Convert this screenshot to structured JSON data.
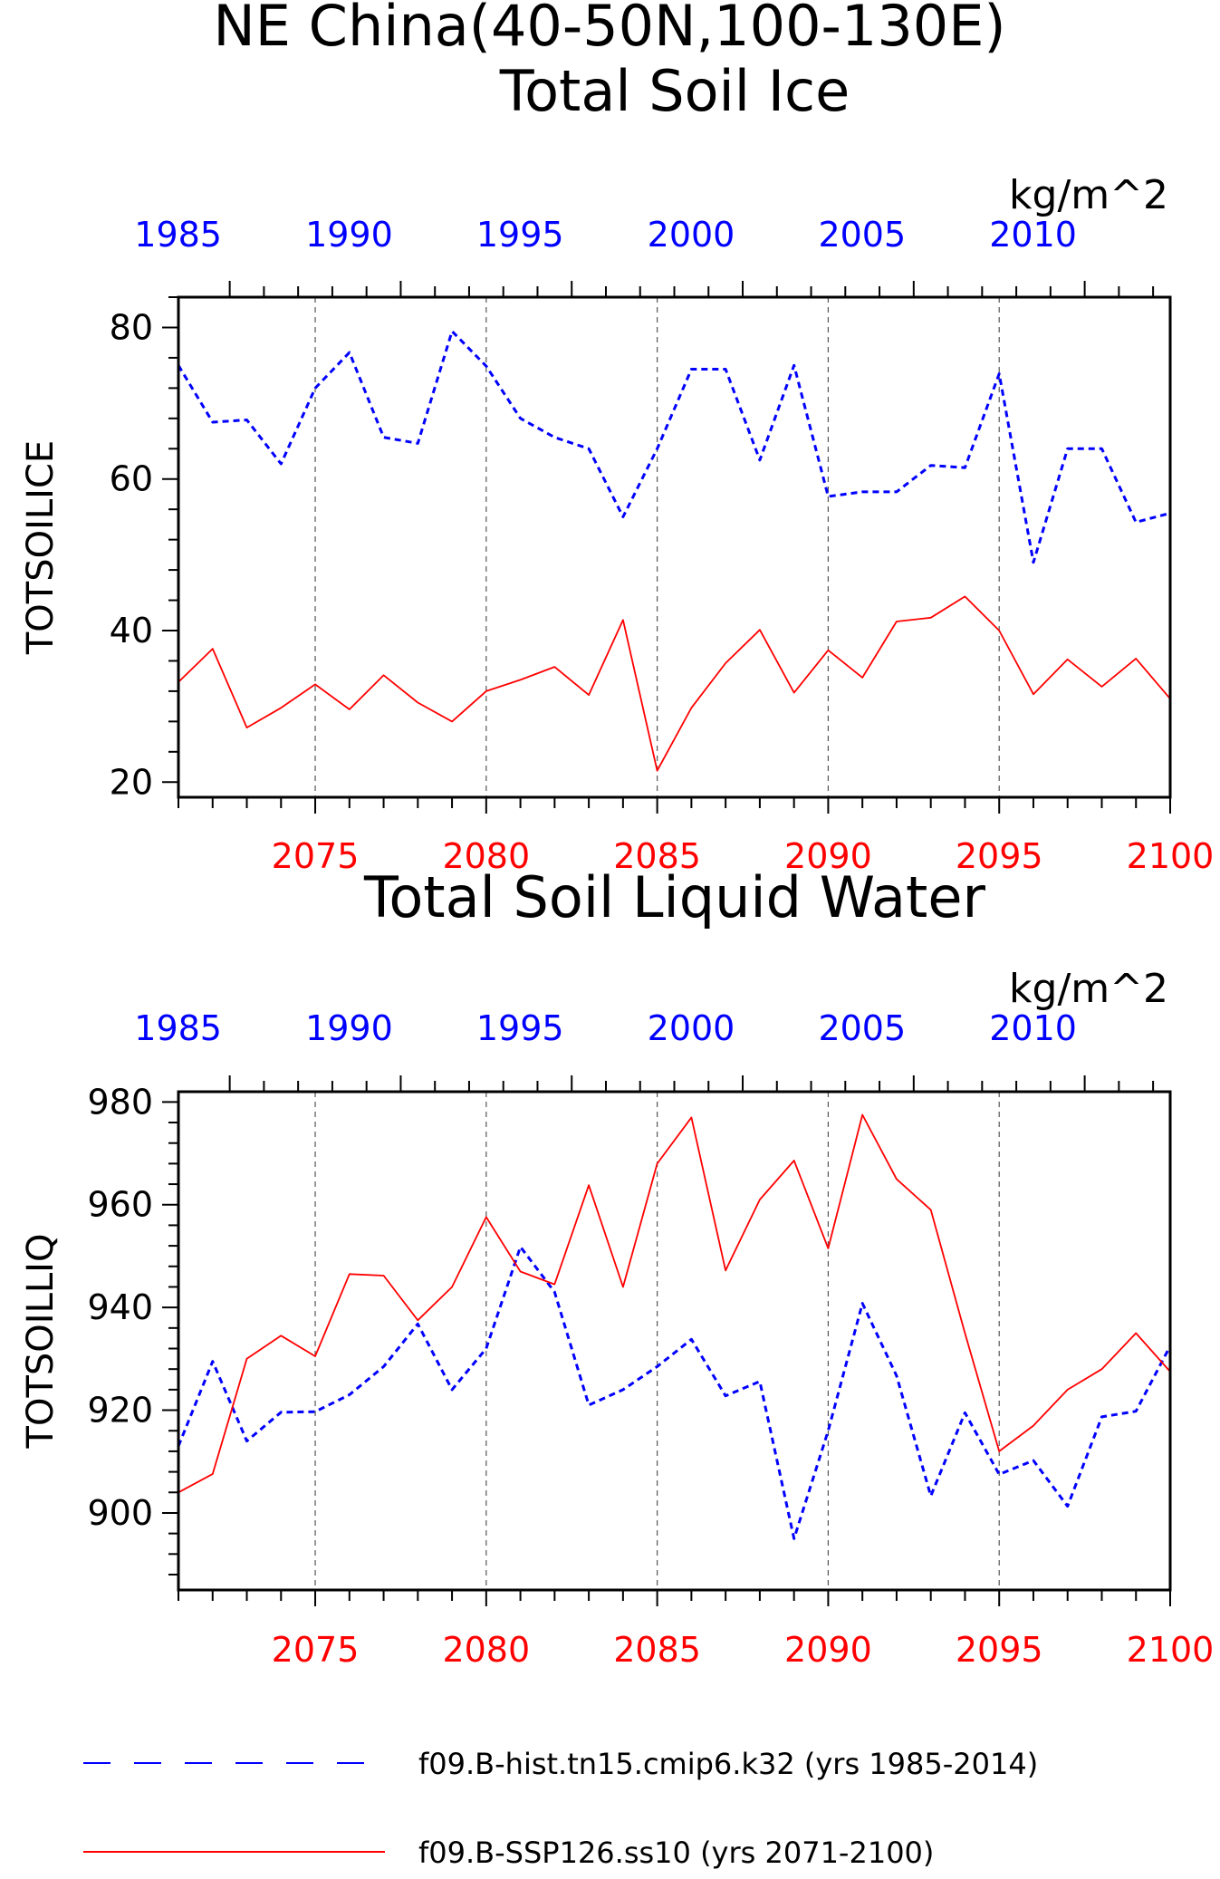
{
  "title_line1": "NE China(40-50N,100-130E)",
  "colors": {
    "hist": "#0000ff",
    "ssp": "#ff0000",
    "axis": "#000000",
    "grid": "#555555"
  },
  "legend": [
    {
      "label": "f09.B-hist.tn15.cmip6.k32 (yrs 1985-2014)",
      "color": "#0000ff",
      "style": "dashed"
    },
    {
      "label": "f09.B-SSP126.ss10 (yrs 2071-2100)",
      "color": "#ff0000",
      "style": "solid"
    }
  ],
  "chart_data": [
    {
      "type": "line",
      "title": "Total Soil Ice",
      "units": "kg/m^2",
      "ylabel": "TOTSOILICE",
      "ylim": [
        18,
        84
      ],
      "yticks": [
        20,
        40,
        60,
        80
      ],
      "x_bottom": [
        2071,
        2072,
        2073,
        2074,
        2075,
        2076,
        2077,
        2078,
        2079,
        2080,
        2081,
        2082,
        2083,
        2084,
        2085,
        2086,
        2087,
        2088,
        2089,
        2090,
        2091,
        2092,
        2093,
        2094,
        2095,
        2096,
        2097,
        2098,
        2099,
        2100
      ],
      "x_bottom_ticks": [
        "2075",
        "2080",
        "2085",
        "2090",
        "2095",
        "2100"
      ],
      "x_top_ticks": [
        "1985",
        "1990",
        "1995",
        "2000",
        "2005",
        "2010"
      ],
      "series": [
        {
          "name": "f09.B-hist.tn15.cmip6.k32",
          "years": "1985-2014",
          "values": [
            75,
            67.5,
            67.8,
            62,
            72,
            76.7,
            65.5,
            64.7,
            79.5,
            74.9,
            68,
            65.5,
            64,
            55,
            64,
            74.5,
            74.5,
            62.5,
            75,
            57.7,
            58.3,
            58.3,
            61.8,
            61.5,
            73.9,
            49,
            64,
            64,
            54.3,
            55.5
          ]
        },
        {
          "name": "f09.B-SSP126.ss10",
          "years": "2071-2100",
          "values": [
            33.2,
            37.6,
            27.2,
            29.8,
            32.9,
            29.6,
            34.1,
            30.5,
            28,
            32,
            33.5,
            35.2,
            31.5,
            41.4,
            21.5,
            29.8,
            35.7,
            40.1,
            31.8,
            37.4,
            33.8,
            41.2,
            41.7,
            44.5,
            40,
            31.6,
            36.2,
            32.6,
            36.3,
            31
          ]
        }
      ]
    },
    {
      "type": "line",
      "title": "Total Soil Liquid Water",
      "units": "kg/m^2",
      "ylabel": "TOTSOILLIQ",
      "ylim": [
        885,
        982
      ],
      "yticks": [
        900,
        920,
        940,
        960,
        980
      ],
      "x_bottom": [
        2071,
        2072,
        2073,
        2074,
        2075,
        2076,
        2077,
        2078,
        2079,
        2080,
        2081,
        2082,
        2083,
        2084,
        2085,
        2086,
        2087,
        2088,
        2089,
        2090,
        2091,
        2092,
        2093,
        2094,
        2095,
        2096,
        2097,
        2098,
        2099,
        2100
      ],
      "x_bottom_ticks": [
        "2075",
        "2080",
        "2085",
        "2090",
        "2095",
        "2100"
      ],
      "x_top_ticks": [
        "1985",
        "1990",
        "1995",
        "2000",
        "2005",
        "2010"
      ],
      "series": [
        {
          "name": "f09.B-hist.tn15.cmip6.k32",
          "years": "1985-2014",
          "values": [
            913,
            929.5,
            914,
            919.6,
            919.7,
            923,
            928.5,
            936.8,
            924,
            932,
            951.8,
            943,
            921,
            924,
            928.5,
            933.8,
            922.8,
            925.6,
            895,
            916,
            940.8,
            926.7,
            903.3,
            919.5,
            907.5,
            910.2,
            901.3,
            918.7,
            919.8,
            932.5
          ]
        },
        {
          "name": "f09.B-SSP126.ss10",
          "years": "2071-2100",
          "values": [
            904,
            907.6,
            930,
            934.5,
            930.5,
            946.5,
            946.2,
            937.5,
            944,
            957.6,
            947,
            944.5,
            963.8,
            944,
            968,
            977,
            947.2,
            961,
            968.6,
            951.5,
            977.5,
            965,
            959,
            935,
            912,
            917,
            924,
            928,
            935,
            927.5
          ]
        }
      ]
    }
  ]
}
